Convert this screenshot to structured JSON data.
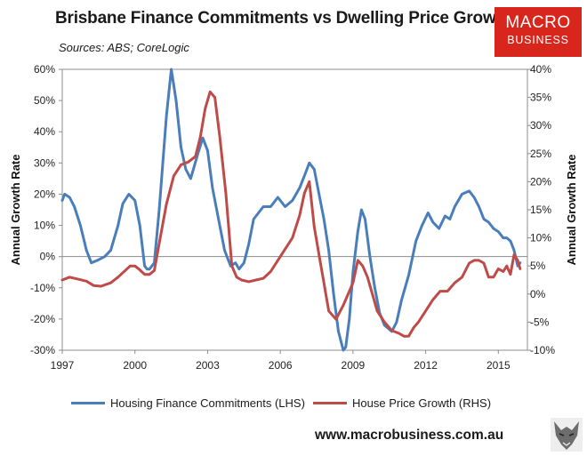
{
  "header": {
    "title": "Brisbane Finance Commitments vs Dwelling Price Growth",
    "source": "Sources: ABS; CoreLogic"
  },
  "brand": {
    "line1": "MACRO",
    "line2": "BUSINESS"
  },
  "footer": {
    "url": "www.macrobusiness.com.au"
  },
  "colors": {
    "finance": "#4a7ebb",
    "price": "#be4b48",
    "brand": "#d9261c"
  },
  "chart_data": {
    "type": "line",
    "title": "Brisbane Finance Commitments vs Dwelling Price Growth",
    "xlabel": "",
    "ylabel_left": "Annual Growth Rate",
    "ylabel_right": "Annual Growth Rate",
    "x_range": [
      1997,
      2016.2
    ],
    "x_ticks": [
      1997,
      2000,
      2003,
      2006,
      2009,
      2012,
      2015
    ],
    "x_tick_labels": [
      "1997",
      "2000",
      "2003",
      "2006",
      "2009",
      "2012",
      "2015"
    ],
    "ylim_left": [
      -30,
      60
    ],
    "y_ticks_left": [
      60,
      50,
      40,
      30,
      20,
      10,
      0,
      -10,
      -20,
      -30
    ],
    "y_tick_labels_left": [
      "60%",
      "50%",
      "40%",
      "30%",
      "20%",
      "10%",
      "0%",
      "-10%",
      "-20%",
      "-30%"
    ],
    "ylim_right": [
      -10,
      40
    ],
    "y_ticks_right": [
      40,
      35,
      30,
      25,
      20,
      15,
      10,
      5,
      0,
      -5,
      -10
    ],
    "y_tick_labels_right": [
      "40%",
      "35%",
      "30%",
      "25%",
      "20%",
      "15%",
      "10%",
      "5%",
      "0%",
      "-5%",
      "-10%"
    ],
    "legend_position": "bottom",
    "series": [
      {
        "name": "Housing Finance Commitments (LHS)",
        "axis": "left",
        "x": [
          1997.0,
          1997.1,
          1997.3,
          1997.5,
          1997.75,
          1998.0,
          1998.2,
          1998.5,
          1998.75,
          1999.0,
          1999.3,
          1999.5,
          1999.75,
          2000.0,
          2000.2,
          2000.4,
          2000.5,
          2000.6,
          2000.8,
          2001.0,
          2001.3,
          2001.5,
          2001.7,
          2001.9,
          2002.1,
          2002.3,
          2002.6,
          2002.8,
          2003.0,
          2003.2,
          2003.45,
          2003.7,
          2003.95,
          2004.15,
          2004.3,
          2004.5,
          2004.7,
          2004.9,
          2005.1,
          2005.3,
          2005.6,
          2005.9,
          2006.2,
          2006.5,
          2006.8,
          2007.0,
          2007.2,
          2007.4,
          2007.6,
          2007.8,
          2008.0,
          2008.2,
          2008.4,
          2008.6,
          2008.7,
          2008.85,
          2009.0,
          2009.2,
          2009.35,
          2009.5,
          2009.7,
          2009.9,
          2010.1,
          2010.3,
          2010.6,
          2010.8,
          2011.0,
          2011.3,
          2011.6,
          2011.85,
          2012.1,
          2012.3,
          2012.55,
          2012.8,
          2013.0,
          2013.2,
          2013.5,
          2013.8,
          2014.0,
          2014.2,
          2014.4,
          2014.6,
          2014.8,
          2015.0,
          2015.2,
          2015.35,
          2015.5,
          2015.65,
          2015.8,
          2015.9
        ],
        "values": [
          18,
          20,
          19,
          16,
          10,
          2,
          -2,
          -1,
          0,
          2,
          10,
          17,
          20,
          18,
          10,
          -3,
          -4,
          -4,
          -2,
          15,
          45,
          60,
          50,
          35,
          28,
          25,
          33,
          38,
          34,
          22,
          12,
          2,
          -3,
          -2,
          -4,
          -2,
          4,
          12,
          14,
          16,
          16,
          19,
          16,
          18,
          22,
          26,
          30,
          28,
          20,
          12,
          2,
          -12,
          -24,
          -30,
          -29,
          -20,
          -5,
          8,
          15,
          12,
          0,
          -10,
          -18,
          -22,
          -24,
          -21,
          -14,
          -6,
          5,
          10,
          14,
          11,
          9,
          13,
          12,
          16,
          20,
          21,
          19,
          16,
          12,
          11,
          9,
          8,
          6,
          6,
          5,
          2,
          -3,
          -2
        ]
      },
      {
        "name": "House Price Growth (RHS)",
        "axis": "right",
        "x": [
          1997.0,
          1997.3,
          1997.6,
          1998.0,
          1998.3,
          1998.6,
          1999.0,
          1999.3,
          1999.6,
          1999.8,
          2000.0,
          2000.2,
          2000.4,
          2000.6,
          2000.8,
          2001.0,
          2001.3,
          2001.6,
          2001.9,
          2002.2,
          2002.5,
          2002.7,
          2002.9,
          2003.1,
          2003.3,
          2003.5,
          2003.75,
          2004.0,
          2004.2,
          2004.4,
          2004.7,
          2005.0,
          2005.3,
          2005.6,
          2005.9,
          2006.2,
          2006.5,
          2006.8,
          2007.0,
          2007.2,
          2007.4,
          2007.6,
          2007.8,
          2008.0,
          2008.3,
          2008.6,
          2008.8,
          2009.0,
          2009.2,
          2009.4,
          2009.6,
          2009.8,
          2010.0,
          2010.3,
          2010.6,
          2010.9,
          2011.1,
          2011.3,
          2011.5,
          2011.7,
          2012.0,
          2012.3,
          2012.6,
          2012.9,
          2013.2,
          2013.5,
          2013.8,
          2014.0,
          2014.2,
          2014.4,
          2014.6,
          2014.8,
          2015.0,
          2015.2,
          2015.35,
          2015.5,
          2015.65,
          2015.8,
          2015.9
        ],
        "values": [
          2.5,
          3,
          2.7,
          2.3,
          1.5,
          1.4,
          2,
          3,
          4.2,
          5,
          5,
          4.3,
          3.5,
          3.5,
          4.2,
          9,
          16,
          21,
          23,
          23.5,
          24.5,
          28,
          33,
          36,
          35,
          28,
          18,
          5,
          3,
          2.5,
          2.2,
          2.5,
          2.8,
          4,
          6,
          8,
          10,
          14,
          18,
          20,
          12,
          7,
          2,
          -3,
          -4.5,
          -2,
          0,
          2,
          6,
          5,
          3,
          0,
          -3,
          -5,
          -6.5,
          -7,
          -7.5,
          -7.5,
          -6,
          -5,
          -3,
          -1,
          0.5,
          0.5,
          2,
          3,
          5.5,
          6,
          6,
          5.5,
          3,
          3,
          4.5,
          4,
          5,
          3.5,
          7,
          6,
          4.5
        ]
      }
    ]
  }
}
